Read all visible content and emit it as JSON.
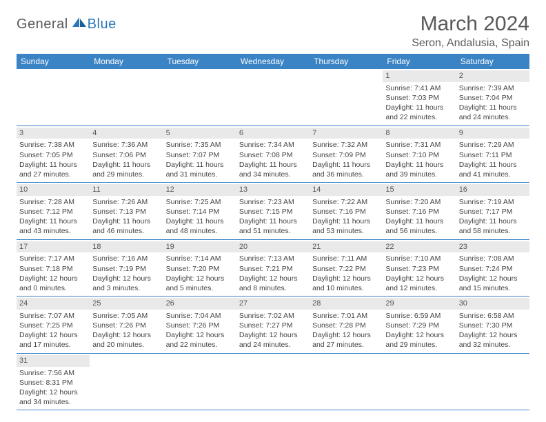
{
  "logo": {
    "text1": "General",
    "text2": "Blue"
  },
  "title": "March 2024",
  "location": "Seron, Andalusia, Spain",
  "weekday_labels": [
    "Sunday",
    "Monday",
    "Tuesday",
    "Wednesday",
    "Thursday",
    "Friday",
    "Saturday"
  ],
  "colors": {
    "header_bar": "#3a83c4",
    "daynum_bg": "#e9e9e9",
    "rule": "#3a83c4",
    "text_muted": "#5a5a5a",
    "logo_blue": "#2976ba"
  },
  "first_weekday_index": 5,
  "days": [
    {
      "n": 1,
      "sunrise": "7:41 AM",
      "sunset": "7:03 PM",
      "daylight": "11 hours and 22 minutes."
    },
    {
      "n": 2,
      "sunrise": "7:39 AM",
      "sunset": "7:04 PM",
      "daylight": "11 hours and 24 minutes."
    },
    {
      "n": 3,
      "sunrise": "7:38 AM",
      "sunset": "7:05 PM",
      "daylight": "11 hours and 27 minutes."
    },
    {
      "n": 4,
      "sunrise": "7:36 AM",
      "sunset": "7:06 PM",
      "daylight": "11 hours and 29 minutes."
    },
    {
      "n": 5,
      "sunrise": "7:35 AM",
      "sunset": "7:07 PM",
      "daylight": "11 hours and 31 minutes."
    },
    {
      "n": 6,
      "sunrise": "7:34 AM",
      "sunset": "7:08 PM",
      "daylight": "11 hours and 34 minutes."
    },
    {
      "n": 7,
      "sunrise": "7:32 AM",
      "sunset": "7:09 PM",
      "daylight": "11 hours and 36 minutes."
    },
    {
      "n": 8,
      "sunrise": "7:31 AM",
      "sunset": "7:10 PM",
      "daylight": "11 hours and 39 minutes."
    },
    {
      "n": 9,
      "sunrise": "7:29 AM",
      "sunset": "7:11 PM",
      "daylight": "11 hours and 41 minutes."
    },
    {
      "n": 10,
      "sunrise": "7:28 AM",
      "sunset": "7:12 PM",
      "daylight": "11 hours and 43 minutes."
    },
    {
      "n": 11,
      "sunrise": "7:26 AM",
      "sunset": "7:13 PM",
      "daylight": "11 hours and 46 minutes."
    },
    {
      "n": 12,
      "sunrise": "7:25 AM",
      "sunset": "7:14 PM",
      "daylight": "11 hours and 48 minutes."
    },
    {
      "n": 13,
      "sunrise": "7:23 AM",
      "sunset": "7:15 PM",
      "daylight": "11 hours and 51 minutes."
    },
    {
      "n": 14,
      "sunrise": "7:22 AM",
      "sunset": "7:16 PM",
      "daylight": "11 hours and 53 minutes."
    },
    {
      "n": 15,
      "sunrise": "7:20 AM",
      "sunset": "7:16 PM",
      "daylight": "11 hours and 56 minutes."
    },
    {
      "n": 16,
      "sunrise": "7:19 AM",
      "sunset": "7:17 PM",
      "daylight": "11 hours and 58 minutes."
    },
    {
      "n": 17,
      "sunrise": "7:17 AM",
      "sunset": "7:18 PM",
      "daylight": "12 hours and 0 minutes."
    },
    {
      "n": 18,
      "sunrise": "7:16 AM",
      "sunset": "7:19 PM",
      "daylight": "12 hours and 3 minutes."
    },
    {
      "n": 19,
      "sunrise": "7:14 AM",
      "sunset": "7:20 PM",
      "daylight": "12 hours and 5 minutes."
    },
    {
      "n": 20,
      "sunrise": "7:13 AM",
      "sunset": "7:21 PM",
      "daylight": "12 hours and 8 minutes."
    },
    {
      "n": 21,
      "sunrise": "7:11 AM",
      "sunset": "7:22 PM",
      "daylight": "12 hours and 10 minutes."
    },
    {
      "n": 22,
      "sunrise": "7:10 AM",
      "sunset": "7:23 PM",
      "daylight": "12 hours and 12 minutes."
    },
    {
      "n": 23,
      "sunrise": "7:08 AM",
      "sunset": "7:24 PM",
      "daylight": "12 hours and 15 minutes."
    },
    {
      "n": 24,
      "sunrise": "7:07 AM",
      "sunset": "7:25 PM",
      "daylight": "12 hours and 17 minutes."
    },
    {
      "n": 25,
      "sunrise": "7:05 AM",
      "sunset": "7:26 PM",
      "daylight": "12 hours and 20 minutes."
    },
    {
      "n": 26,
      "sunrise": "7:04 AM",
      "sunset": "7:26 PM",
      "daylight": "12 hours and 22 minutes."
    },
    {
      "n": 27,
      "sunrise": "7:02 AM",
      "sunset": "7:27 PM",
      "daylight": "12 hours and 24 minutes."
    },
    {
      "n": 28,
      "sunrise": "7:01 AM",
      "sunset": "7:28 PM",
      "daylight": "12 hours and 27 minutes."
    },
    {
      "n": 29,
      "sunrise": "6:59 AM",
      "sunset": "7:29 PM",
      "daylight": "12 hours and 29 minutes."
    },
    {
      "n": 30,
      "sunrise": "6:58 AM",
      "sunset": "7:30 PM",
      "daylight": "12 hours and 32 minutes."
    },
    {
      "n": 31,
      "sunrise": "7:56 AM",
      "sunset": "8:31 PM",
      "daylight": "12 hours and 34 minutes."
    }
  ],
  "labels": {
    "sunrise_prefix": "Sunrise: ",
    "sunset_prefix": "Sunset: ",
    "daylight_prefix": "Daylight: "
  }
}
